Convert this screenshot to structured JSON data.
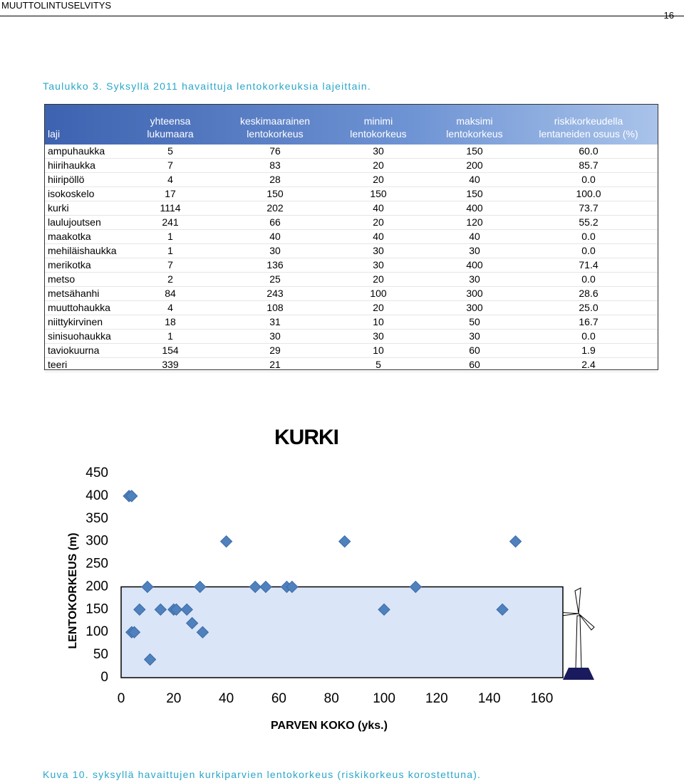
{
  "header": {
    "title": "MUUTTOLINTUSELVITYS",
    "page": "16"
  },
  "table": {
    "caption": "Taulukko 3. Syksyllä 2011 havaittuja lentokorkeuksia lajeittain.",
    "columns": [
      [
        "laji"
      ],
      [
        "yhteensa",
        "lukumaara"
      ],
      [
        "keskimaarainen",
        "lentokorkeus"
      ],
      [
        "minimi",
        "lentokorkeus"
      ],
      [
        "maksimi",
        "lentokorkeus"
      ],
      [
        "riskikorkeudella",
        "lentaneiden osuus (%)"
      ]
    ],
    "rows": [
      [
        "ampuhaukka",
        "5",
        "76",
        "30",
        "150",
        "60.0"
      ],
      [
        "hiirihaukka",
        "7",
        "83",
        "20",
        "200",
        "85.7"
      ],
      [
        "hiiripöllö",
        "4",
        "28",
        "20",
        "40",
        "0.0"
      ],
      [
        "isokoskelo",
        "17",
        "150",
        "150",
        "150",
        "100.0"
      ],
      [
        "kurki",
        "1114",
        "202",
        "40",
        "400",
        "73.7"
      ],
      [
        "laulujoutsen",
        "241",
        "66",
        "20",
        "120",
        "55.2"
      ],
      [
        "maakotka",
        "1",
        "40",
        "40",
        "40",
        "0.0"
      ],
      [
        "mehiläishaukka",
        "1",
        "30",
        "30",
        "30",
        "0.0"
      ],
      [
        "merikotka",
        "7",
        "136",
        "30",
        "400",
        "71.4"
      ],
      [
        "metso",
        "2",
        "25",
        "20",
        "30",
        "0.0"
      ],
      [
        "metsähanhi",
        "84",
        "243",
        "100",
        "300",
        "28.6"
      ],
      [
        "muuttohaukka",
        "4",
        "108",
        "20",
        "300",
        "25.0"
      ],
      [
        "niittykirvinen",
        "18",
        "31",
        "10",
        "50",
        "16.7"
      ],
      [
        "sinisuohaukka",
        "1",
        "30",
        "30",
        "30",
        "0.0"
      ],
      [
        "taviokuurna",
        "154",
        "29",
        "10",
        "60",
        "1.9"
      ],
      [
        "teeri",
        "339",
        "21",
        "5",
        "60",
        "2.4"
      ]
    ]
  },
  "chart_data": {
    "type": "scatter",
    "title": "KURKI",
    "x_label": "PARVEN KOKO (yks.)",
    "y_label": "LENTOKORKEUS (m)",
    "x": [
      3,
      4,
      4,
      5,
      7,
      10,
      11,
      15,
      20,
      21,
      25,
      27,
      30,
      31,
      40,
      51,
      55,
      63,
      65,
      85,
      100,
      112,
      145,
      150
    ],
    "y": [
      400,
      400,
      100,
      100,
      150,
      200,
      40,
      150,
      150,
      150,
      150,
      120,
      200,
      100,
      300,
      200,
      200,
      200,
      200,
      300,
      150,
      200,
      150,
      300
    ],
    "color": "#4f81bd",
    "xlim": [
      0,
      168
    ],
    "xticks": [
      0,
      20,
      40,
      60,
      80,
      100,
      120,
      140,
      160
    ],
    "ylim": [
      0,
      450
    ],
    "yticks": [
      0,
      50,
      100,
      150,
      200,
      250,
      300,
      350,
      400,
      450
    ],
    "highlight_ylim": [
      0,
      200
    ],
    "highlight_color": "#dbe5f8"
  },
  "caption": "Kuva 10. syksyllä havaittujen kurkiparvien lentokorkeus (riskikorkeus korostettuna)."
}
